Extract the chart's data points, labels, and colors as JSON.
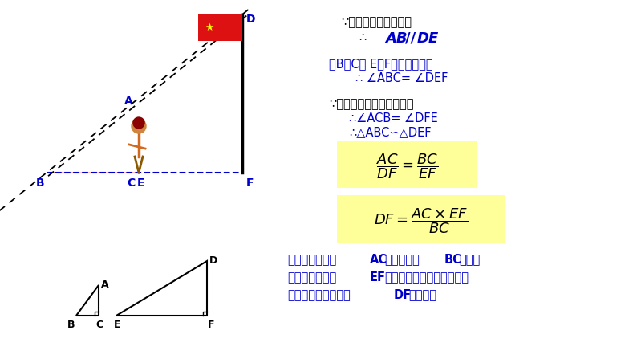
{
  "bg_color": "#ffffff",
  "blue_dark": "#0000CC",
  "blue_label": "#1414CC",
  "black": "#000000",
  "red_flag": "#DD1111",
  "yellow_bg": "#FFFF99",
  "line1": "∵太阳的光线是平行的",
  "line2a": "∴",
  "line2b": "AB // DE",
  "line3": "又B、C、 E、F在一条直线上",
  "line4": "∴ ∠ABC= ∠DEF",
  "line5": "∵人与旗杆是垂直于地面的",
  "line6": "∴∠ACB= ∠DFE",
  "line7": "∴△ABC∽△DEF",
  "bottom1": "因为同学的身高",
  "bottom1b": "AC",
  "bottom1c": "和她的影长",
  "bottom1d": "BC",
  "bottom1e": "及同一",
  "bottom2": "时刻旗杆的影长",
  "bottom2b": "EF",
  "bottom2c": "均可测量得出，所以代入测",
  "bottom3": "量数据即可求出旗杆",
  "bottom3b": "DF",
  "bottom3c": "的高度。"
}
